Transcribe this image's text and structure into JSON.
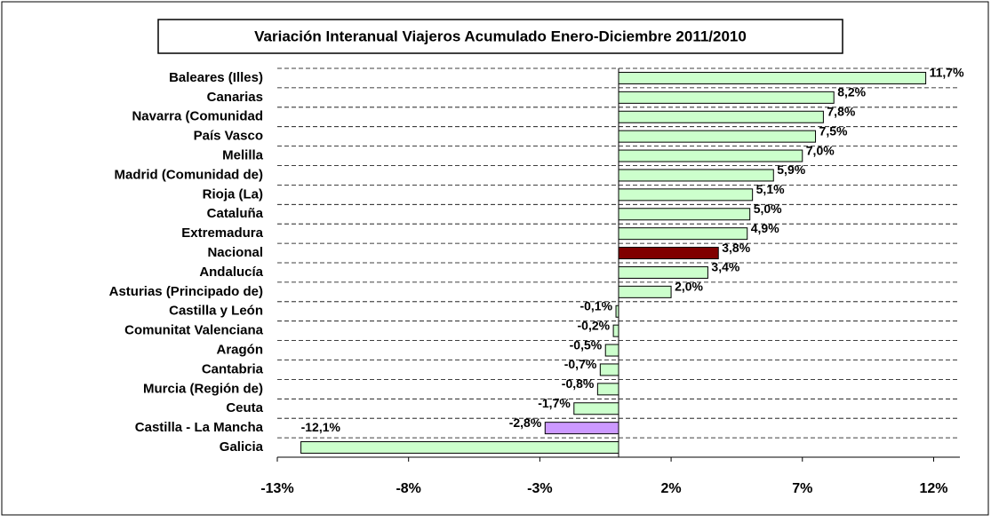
{
  "chart_data": {
    "type": "barh",
    "title": "Variación Interanual Viajeros Acumulado Enero-Diciembre 2011/2010",
    "categories": [
      "Baleares (Illes)",
      "Canarias",
      "Navarra (Comunidad",
      "País Vasco",
      "Melilla",
      "Madrid (Comunidad de)",
      "Rioja (La)",
      "Cataluña",
      "Extremadura",
      "Nacional",
      "Andalucía",
      "Asturias (Principado de)",
      "Castilla y León",
      "Comunitat Valenciana",
      "Aragón",
      "Cantabria",
      "Murcia (Región de)",
      "Ceuta",
      "Castilla - La Mancha",
      "Galicia"
    ],
    "values": [
      11.7,
      8.2,
      7.8,
      7.5,
      7.0,
      5.9,
      5.1,
      5.0,
      4.9,
      3.8,
      3.4,
      2.0,
      -0.1,
      -0.2,
      -0.5,
      -0.7,
      -0.8,
      -1.7,
      -2.8,
      -12.1
    ],
    "value_labels": [
      "11,7%",
      "8,2%",
      "7,8%",
      "7,5%",
      "7,0%",
      "5,9%",
      "5,1%",
      "5,0%",
      "4,9%",
      "3,8%",
      "3,4%",
      "2,0%",
      "-0,1%",
      "-0,2%",
      "-0,5%",
      "-0,7%",
      "-0,8%",
      "-1,7%",
      "-2,8%",
      "-12,1%"
    ],
    "colors": [
      "#ccffcc",
      "#ccffcc",
      "#ccffcc",
      "#ccffcc",
      "#ccffcc",
      "#ccffcc",
      "#ccffcc",
      "#ccffcc",
      "#ccffcc",
      "#800000",
      "#ccffcc",
      "#ccffcc",
      "#ccffcc",
      "#ccffcc",
      "#ccffcc",
      "#ccffcc",
      "#ccffcc",
      "#ccffcc",
      "#cc99ff",
      "#ccffcc"
    ],
    "xlim": [
      -13,
      13
    ],
    "xticks": [
      {
        "value": -13,
        "label": "-13%"
      },
      {
        "value": -8,
        "label": "-8%"
      },
      {
        "value": -3,
        "label": "-3%"
      },
      {
        "value": 2,
        "label": "2%"
      },
      {
        "value": 7,
        "label": "7%"
      },
      {
        "value": 12,
        "label": "12%"
      }
    ],
    "grid": true
  }
}
